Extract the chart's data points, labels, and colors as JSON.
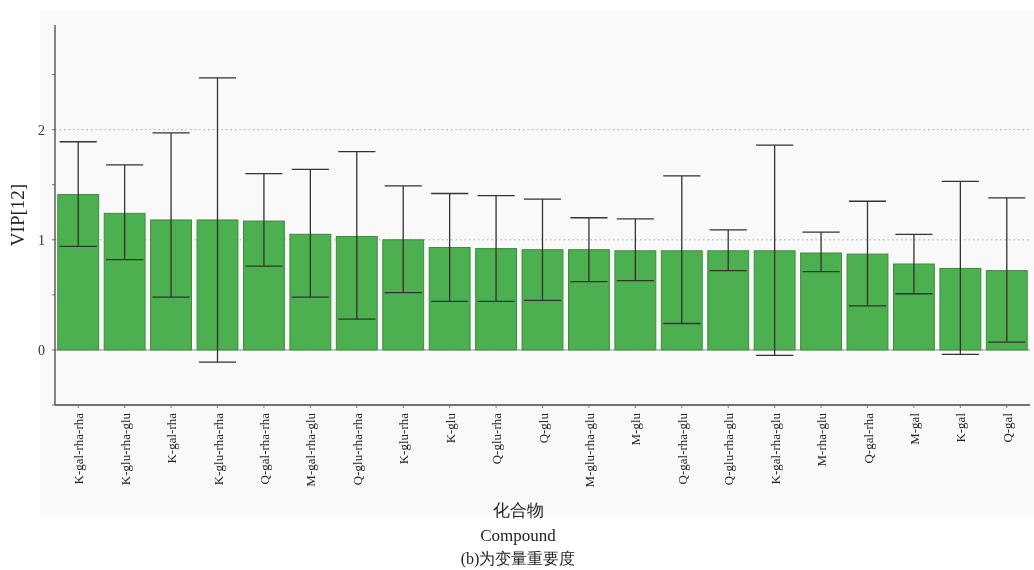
{
  "chart_data": {
    "type": "bar",
    "xlabel": "化合物\nCompound",
    "ylabel": "VIP[12]",
    "categories": [
      "K-gal-rha-rha",
      "K-glu-rha-glu",
      "K-gal-rha",
      "K-glu-rha-rha",
      "Q-gal-rha-rha",
      "M-gal-rha-glu",
      "Q-glu-rha-rha",
      "K-glu-rha",
      "K-glu",
      "Q-glu-rha",
      "Q-glu",
      "M-glu-rha-glu",
      "M-glu",
      "Q-gal-rha-glu",
      "Q-glu-rha-glu",
      "K-gal-rha-glu",
      "M-rha-glu",
      "Q-gal-rha",
      "M-gal",
      "K-gal",
      "Q-gal"
    ],
    "series": [
      {
        "color": "#4caf50",
        "values": [
          1.41,
          1.24,
          1.18,
          1.18,
          1.17,
          1.05,
          1.03,
          1.0,
          0.93,
          0.92,
          0.91,
          0.91,
          0.9,
          0.9,
          0.9,
          0.9,
          0.88,
          0.87,
          0.78,
          0.74,
          0.72
        ],
        "errors": [
          [
            0.94,
            1.89
          ],
          [
            0.82,
            1.68
          ],
          [
            0.48,
            1.97
          ],
          [
            -0.11,
            2.47
          ],
          [
            0.76,
            1.6
          ],
          [
            0.48,
            1.64
          ],
          [
            0.28,
            1.8
          ],
          [
            0.52,
            1.49
          ],
          [
            0.44,
            1.42
          ],
          [
            0.44,
            1.4
          ],
          [
            0.45,
            1.37
          ],
          [
            0.62,
            1.2
          ],
          [
            0.63,
            1.19
          ],
          [
            0.24,
            1.58
          ],
          [
            0.72,
            1.09
          ],
          [
            -0.05,
            1.86
          ],
          [
            0.71,
            1.07
          ],
          [
            0.4,
            1.35
          ],
          [
            0.51,
            1.05
          ],
          [
            -0.04,
            1.53
          ],
          [
            0.07,
            1.38
          ]
        ]
      }
    ],
    "ylim": [
      -0.5,
      2.95
    ],
    "yticks": [
      {
        "value": -0.5,
        "label": null
      },
      0,
      {
        "value": 0.5,
        "label": null
      },
      1,
      {
        "value": 1.5,
        "label": null
      },
      2,
      {
        "value": 2.5,
        "label": null
      }
    ],
    "grid": "y",
    "annotations": [
      "(b)为变量重要度"
    ]
  }
}
